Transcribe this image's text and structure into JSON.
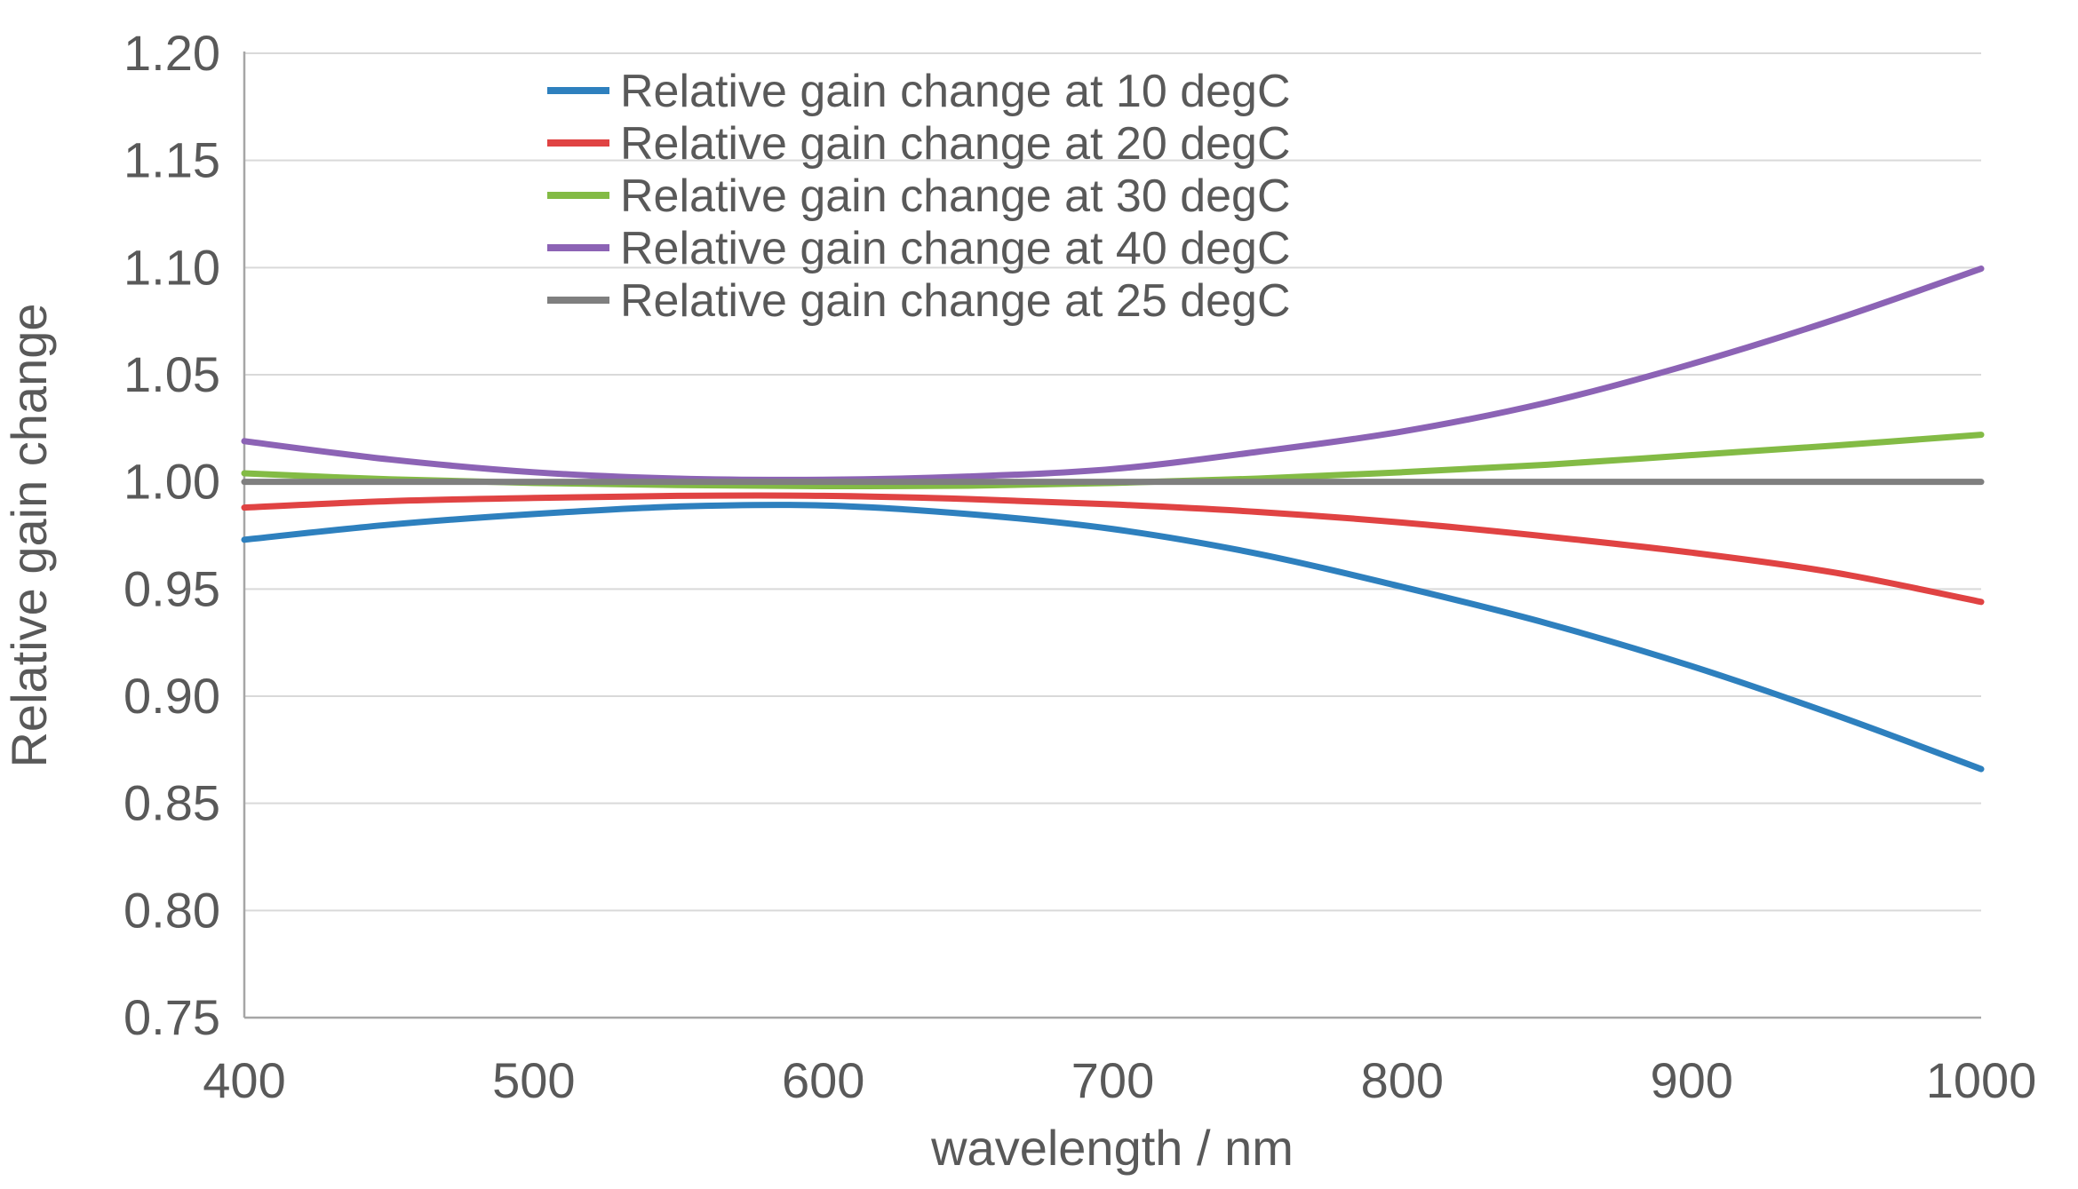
{
  "chart_data": {
    "type": "line",
    "title": "",
    "xlabel": "wavelength / nm",
    "ylabel": "Relative gain change",
    "xlim": [
      400,
      1000
    ],
    "ylim": [
      0.75,
      1.2
    ],
    "xticks": [
      400,
      500,
      600,
      700,
      800,
      900,
      1000
    ],
    "yticks": [
      1.2,
      1.15,
      1.1,
      1.05,
      1.0,
      0.95,
      0.9,
      0.85,
      0.8,
      0.75
    ],
    "grid": true,
    "legend_position": "top-center-inside",
    "x": [
      400,
      450,
      500,
      550,
      600,
      650,
      700,
      750,
      800,
      850,
      900,
      950,
      1000
    ],
    "series": [
      {
        "name": "Relative gain change at 10 degC",
        "color": "#2E80BE",
        "values": [
          0.973,
          0.98,
          0.985,
          0.9885,
          0.989,
          0.985,
          0.978,
          0.9665,
          0.951,
          0.934,
          0.914,
          0.891,
          0.866
        ]
      },
      {
        "name": "Relative gain change at 20 degC",
        "color": "#E04343",
        "values": [
          0.988,
          0.991,
          0.9925,
          0.9935,
          0.9935,
          0.992,
          0.9895,
          0.986,
          0.981,
          0.9745,
          0.967,
          0.9575,
          0.944
        ]
      },
      {
        "name": "Relative gain change at 30 degC",
        "color": "#83BB45",
        "values": [
          1.004,
          1.0012,
          0.9995,
          0.9985,
          0.998,
          0.9982,
          0.9995,
          1.0015,
          1.0045,
          1.008,
          1.0125,
          1.017,
          1.022
        ]
      },
      {
        "name": "Relative gain change at 40 degC",
        "color": "#8C63B5",
        "values": [
          1.019,
          1.0105,
          1.0045,
          1.0015,
          1.001,
          1.0025,
          1.006,
          1.014,
          1.0235,
          1.037,
          1.055,
          1.076,
          1.0995
        ]
      },
      {
        "name": "Relative gain change at 25 degC",
        "color": "#7F7F7F",
        "values": [
          1.0,
          1.0,
          1.0,
          1.0,
          1.0,
          1.0,
          1.0,
          1.0,
          1.0,
          1.0,
          1.0,
          1.0,
          1.0
        ]
      }
    ]
  },
  "styles": {
    "text_color": "#595959",
    "grid_color": "#D9D9D9",
    "axis_color": "#A6A6A6",
    "background": "#FFFFFF"
  }
}
